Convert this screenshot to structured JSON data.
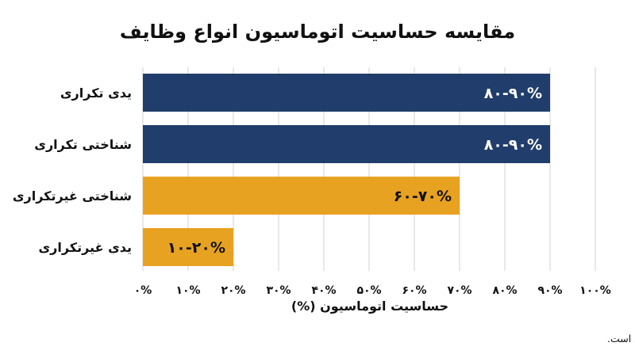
{
  "chart_data": {
    "type": "bar",
    "orientation": "horizontal",
    "title": "مقایسه حساسیت اتوماسیون انواع وظایف",
    "categories": [
      "یدی تکراری",
      "شناختی تکراری",
      "شناختی غیرتکراری",
      "یدی غیرتکراری"
    ],
    "values": [
      90,
      90,
      70,
      20
    ],
    "value_labels": [
      "۸۰-۹۰%",
      "۸۰-۹۰%",
      "۶۰-۷۰%",
      "۱۰-۲۰%"
    ],
    "bar_colors": [
      "#203d6b",
      "#203d6b",
      "#e8a221",
      "#e8a221"
    ],
    "value_label_colors": [
      "#ffffff",
      "#ffffff",
      "#111111",
      "#111111"
    ],
    "xlabel": "حساسیت اتوماسیون (%)",
    "ylabel": "",
    "xlim": [
      0,
      100
    ],
    "x_ticks": [
      0,
      10,
      20,
      30,
      40,
      50,
      60,
      70,
      80,
      90,
      100
    ],
    "x_tick_labels": [
      "۰%",
      "۱۰%",
      "۲۰%",
      "۳۰%",
      "۴۰%",
      "۵۰%",
      "۶۰%",
      "۷۰%",
      "۸۰%",
      "۹۰%",
      "۱۰۰%"
    ],
    "grid": true,
    "legend": "none"
  },
  "footnote": "توضیح: دستاوردهای اخیر هوش مصنوعی در وظایف شناختی غیرتکراری مشهود است."
}
